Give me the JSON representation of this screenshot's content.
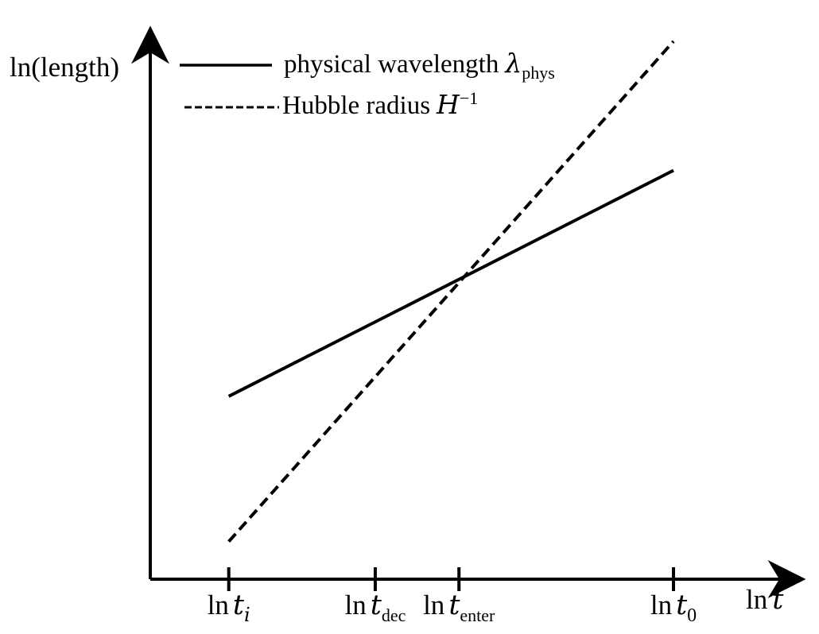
{
  "chart_data": {
    "type": "line",
    "title": "",
    "xlabel": {
      "prefix": "ln",
      "var": "t"
    },
    "ylabel": "ln(length)",
    "xlim": [
      0,
      10
    ],
    "ylim": [
      0,
      10
    ],
    "x_ticks": [
      {
        "value": 1.5,
        "prefix": "ln",
        "var": "t",
        "sub": "i",
        "sub_style": "math"
      },
      {
        "value": 4.3,
        "prefix": "ln",
        "var": "t",
        "sub": "dec",
        "sub_style": "roman"
      },
      {
        "value": 5.9,
        "prefix": "ln",
        "var": "t",
        "sub": "enter",
        "sub_style": "roman"
      },
      {
        "value": 10.0,
        "prefix": "ln",
        "var": "t",
        "sub": "0",
        "sub_style": "roman"
      }
    ],
    "series": [
      {
        "name": "physical wavelength",
        "legend_base": "physical wavelength",
        "legend_symbol": "λ",
        "legend_sub": "phys",
        "style": "solid",
        "color": "#000000",
        "x": [
          1.5,
          10.0
        ],
        "y": [
          3.4,
          7.6
        ]
      },
      {
        "name": "Hubble radius",
        "legend_base": "Hubble radius",
        "legend_symbol": "H",
        "legend_sup": "−1",
        "style": "dashed",
        "color": "#000000",
        "x": [
          1.5,
          10.0
        ],
        "y": [
          0.7,
          10.0
        ]
      }
    ],
    "grid": false,
    "legend_position": "top-left"
  }
}
